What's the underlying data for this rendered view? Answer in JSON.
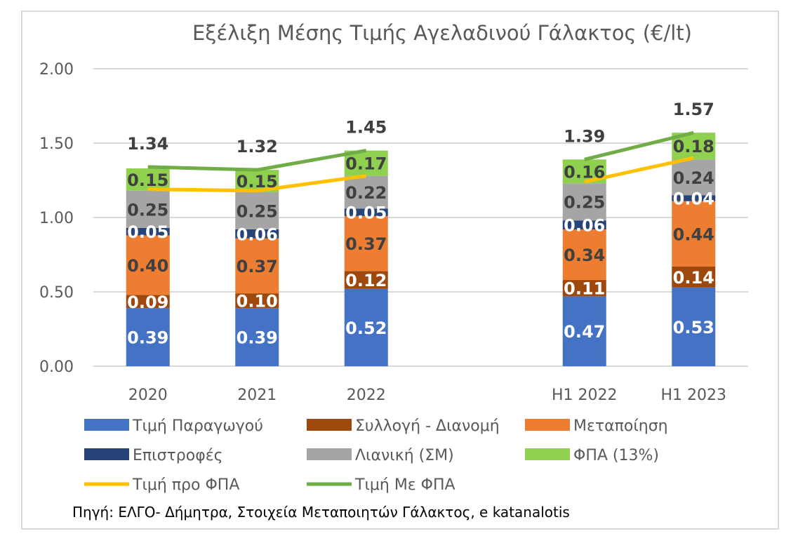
{
  "chart_data": {
    "type": "bar",
    "stacked": true,
    "title": "Εξέλιξη Μέσης Τιμής Αγελαδινού Γάλακτος (€/lt)",
    "categories": [
      "2020",
      "2021",
      "2022",
      "",
      "H1 2022",
      "H1 2023"
    ],
    "ylim": [
      0,
      2.0
    ],
    "yticks": [
      "0.00",
      "0.50",
      "1.00",
      "1.50",
      "2.00"
    ],
    "grid": true,
    "series": [
      {
        "name": "Τιμή Παραγωγού",
        "color": "#4472c4",
        "label_color": "#ffffff",
        "values": [
          0.39,
          0.39,
          0.52,
          null,
          0.47,
          0.53
        ]
      },
      {
        "name": "Συλλογή - Διανομή",
        "color": "#9e480e",
        "label_color": "#ffffff",
        "values": [
          0.09,
          0.1,
          0.12,
          null,
          0.11,
          0.14
        ]
      },
      {
        "name": "Μεταποίηση",
        "color": "#ed7d31",
        "label_color": "#404040",
        "values": [
          0.4,
          0.37,
          0.37,
          null,
          0.34,
          0.44
        ]
      },
      {
        "name": "Επιστροφές",
        "color": "#264478",
        "label_color": "#ffffff",
        "values": [
          0.05,
          0.06,
          0.05,
          null,
          0.06,
          0.04
        ]
      },
      {
        "name": "Λιανική (ΣΜ)",
        "color": "#a5a5a5",
        "label_color": "#404040",
        "values": [
          0.25,
          0.25,
          0.22,
          null,
          0.25,
          0.24
        ]
      },
      {
        "name": "ΦΠΑ (13%)",
        "color": "#8fd14f",
        "label_color": "#404040",
        "values": [
          0.15,
          0.15,
          0.17,
          null,
          0.16,
          0.18
        ]
      }
    ],
    "lines": [
      {
        "name": "Τιμή προ ΦΠΑ",
        "color": "#ffc000",
        "values": [
          1.19,
          1.18,
          1.28,
          null,
          1.24,
          1.4
        ]
      },
      {
        "name": "Τιμή Με ΦΠΑ",
        "color": "#70ad47",
        "values": [
          1.34,
          1.32,
          1.45,
          null,
          1.39,
          1.57
        ],
        "labels": [
          "1.34",
          "1.32",
          "1.45",
          "",
          "1.39",
          "1.57"
        ]
      }
    ],
    "legend_position": "bottom",
    "source": "Πηγή: ΕΛΓΟ- Δήμητρα, Στοιχεία Μεταποιητών Γάλακτος, e katanalotis"
  }
}
